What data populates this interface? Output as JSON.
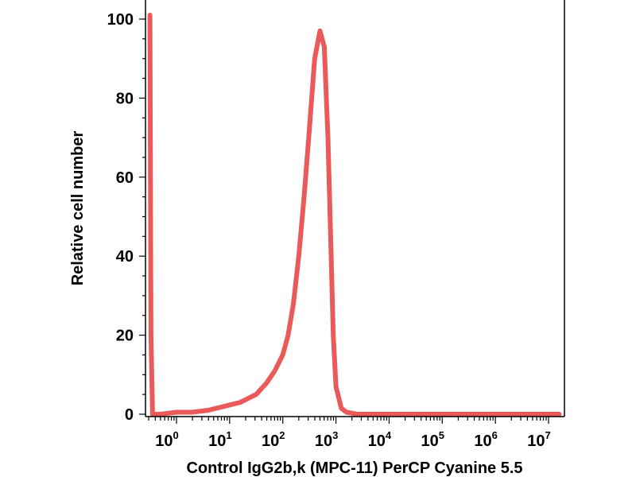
{
  "chart_data": {
    "type": "line",
    "title": "",
    "xlabel": "Control IgG2b,k (MPC-11) PerCP Cyanine 5.5",
    "ylabel": "Relative cell number",
    "xscale": "log",
    "x_ticks": [
      {
        "base": "10",
        "exp": "0"
      },
      {
        "base": "10",
        "exp": "1"
      },
      {
        "base": "10",
        "exp": "2"
      },
      {
        "base": "10",
        "exp": "3"
      },
      {
        "base": "10",
        "exp": "4"
      },
      {
        "base": "10",
        "exp": "5"
      },
      {
        "base": "10",
        "exp": "6"
      },
      {
        "base": "10",
        "exp": "7"
      }
    ],
    "y_ticks": [
      "0",
      "20",
      "40",
      "60",
      "80",
      "100"
    ],
    "ylim": [
      0,
      100
    ],
    "grid": false,
    "legend": "none",
    "series": [
      {
        "color": "#e8514f",
        "x": [
          "1e-0.5",
          "1e-0.48",
          "1e-0.45",
          "1e-0.3",
          "1e0",
          "1e0.3",
          "1e0.6",
          "1e0.9",
          "1e1.2",
          "1e1.5",
          "1e1.7",
          "1e1.85",
          "1e2.0",
          "1e2.1",
          "1e2.2",
          "1e2.3",
          "1e2.4",
          "1e2.5",
          "1e2.6",
          "1e2.7",
          "1e2.78",
          "1e2.85",
          "1e2.9",
          "1e2.95",
          "1e3.0",
          "1e3.1",
          "1e3.2",
          "1e3.4",
          "1e3.7",
          "1e4",
          "1e5",
          "1e6",
          "1e7.2"
        ],
        "x_log10": [
          -0.5,
          -0.48,
          -0.45,
          -0.3,
          0.0,
          0.3,
          0.6,
          0.9,
          1.2,
          1.5,
          1.7,
          1.85,
          2.0,
          2.1,
          2.2,
          2.3,
          2.4,
          2.5,
          2.6,
          2.7,
          2.78,
          2.85,
          2.9,
          2.95,
          3.0,
          3.1,
          3.2,
          3.4,
          3.7,
          4.0,
          5.0,
          6.0,
          7.2
        ],
        "y": [
          101,
          20,
          0,
          0,
          0.5,
          0.5,
          1,
          2,
          3,
          5,
          8,
          11,
          15,
          20,
          28,
          40,
          55,
          72,
          90,
          97,
          93,
          70,
          45,
          20,
          7,
          1.5,
          0.5,
          0,
          0,
          0,
          0,
          0,
          0
        ]
      }
    ]
  }
}
